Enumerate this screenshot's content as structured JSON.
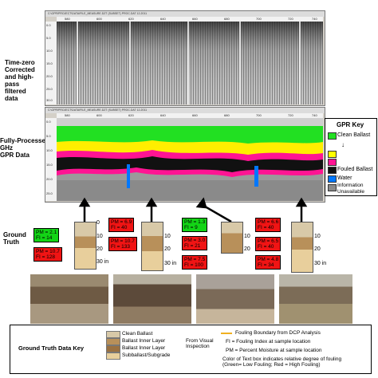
{
  "labels": {
    "time_zero": "Time-zero\nCorrected\nand high-\npass\nfiltered\ndata",
    "fully_processed": "Fully-Processed\nGHz\nGPR Data",
    "ground_truth": "Ground\nTruth"
  },
  "windows": {
    "top_title": "C:\\GPR\\PROJECT\\DATA\\FILE_MEASURE.DZT (SUBSET) PROC.DAT  12-2011",
    "bottom_title": "C:\\GPR\\PROJECT\\DATA\\FILE_MEASURE.DZT (SUBSET) PROC.DAT  12-2011",
    "x_ticks": [
      "580",
      "600",
      "620",
      "640",
      "660",
      "680",
      "700",
      "720",
      "740"
    ],
    "y_ticks_top": [
      "0.0",
      "5.0",
      "10.0",
      "15.0",
      "20.0",
      "25.0",
      "30.0"
    ],
    "y_ticks_bottom": [
      "0.0",
      "5.0",
      "10.0",
      "15.0",
      "20.0",
      "25.0"
    ]
  },
  "gpr_key": {
    "title": "GPR Key",
    "items": [
      {
        "label": "Clean Ballast",
        "color": "#22e022"
      },
      {
        "label": "Fouled Ballast",
        "color": "#111111"
      },
      {
        "label": "Water",
        "color": "#0077ff"
      },
      {
        "label": "Information\nUnavailable",
        "color": "#8a8a8a"
      }
    ],
    "extra_swatches": [
      "#ffff00",
      "#ff1493"
    ]
  },
  "samples": [
    {
      "pm": "PM = 2.1",
      "fi": "FI = 14",
      "color": "green"
    },
    {
      "pm": "PM = 10.7",
      "fi": "FI = 128",
      "color": "red"
    },
    {
      "pm": "PM = 6.9",
      "fi": "FI = 40",
      "color": "red"
    },
    {
      "pm": "PM = 10.7",
      "fi": "FI = 133",
      "color": "red"
    },
    {
      "pm": "PM = 1.3",
      "fi": "FI = 9",
      "color": "green"
    },
    {
      "pm": "PM = 3.0",
      "fi": "FI = 21",
      "color": "red"
    },
    {
      "pm": "PM = 7.5",
      "fi": "FI = 100",
      "color": "red"
    },
    {
      "pm": "PM = 6.6",
      "fi": "FI = 40",
      "color": "red"
    },
    {
      "pm": "PM = 6.5",
      "fi": "FI = 40",
      "color": "red"
    },
    {
      "pm": "PM = 4.8",
      "fi": "FI = 34",
      "color": "red"
    }
  ],
  "depths": {
    "d0": "0",
    "d10": "10",
    "d20": "20",
    "d30": "30 in"
  },
  "gt_key": {
    "title": "Ground Truth Data Key",
    "legend": [
      "Clean Ballast",
      "Ballast Inner Layer",
      "Ballast Inner Layer",
      "Subballast/Subgrade"
    ],
    "from_visual": "From Visual\nInspection",
    "fouling_boundary": "Fouling Boundary from DCP Analysis",
    "fi_def": "FI = Fouling Index at sample location",
    "pm_def": "PM = Percent Moisture at sample location",
    "color_note": "Color of Text box indicates relative degree of fouling\n(Green= Low Fouling; Red = High Fouling)",
    "boundary_color": "#f0b020"
  }
}
